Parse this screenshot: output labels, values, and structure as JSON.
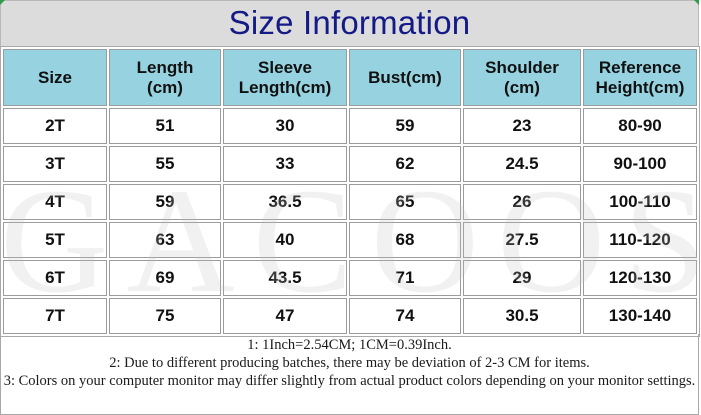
{
  "title": "Size Information",
  "watermark": "GACOOS",
  "headers": [
    [
      "Size"
    ],
    [
      "Length",
      "(cm)"
    ],
    [
      "Sleeve",
      "Length(cm)"
    ],
    [
      "Bust(cm)"
    ],
    [
      "Shoulder",
      "(cm)"
    ],
    [
      "Reference",
      "Height(cm)"
    ]
  ],
  "rows": [
    [
      "2T",
      "51",
      "30",
      "59",
      "23",
      "80-90"
    ],
    [
      "3T",
      "55",
      "33",
      "62",
      "24.5",
      "90-100"
    ],
    [
      "4T",
      "59",
      "36.5",
      "65",
      "26",
      "100-110"
    ],
    [
      "5T",
      "63",
      "40",
      "68",
      "27.5",
      "110-120"
    ],
    [
      "6T",
      "69",
      "43.5",
      "71",
      "29",
      "120-130"
    ],
    [
      "7T",
      "75",
      "47",
      "74",
      "30.5",
      "130-140"
    ]
  ],
  "notes": [
    "1: 1Inch=2.54CM; 1CM=0.39Inch.",
    "2: Due to different producing batches, there may be deviation of 2-3 CM for items.",
    "3: Colors on your computer monitor may differ slightly from actual product colors depending on your monitor settings."
  ],
  "colors": {
    "title_text": "#141a86",
    "title_background": "#dcdcdc",
    "header_background": "#96d2e0",
    "corner_marks": "#2e9a4a"
  }
}
